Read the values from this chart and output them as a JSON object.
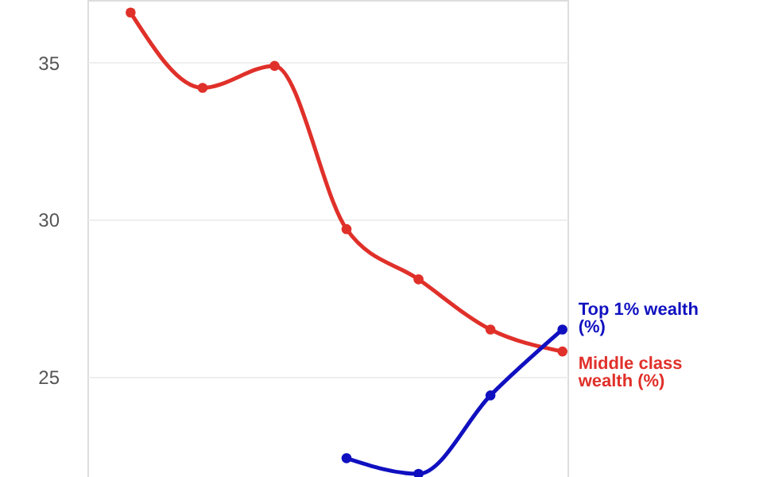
{
  "chart_data": {
    "type": "line",
    "categories": [
      null,
      null,
      null,
      null,
      null,
      null,
      null
    ],
    "series": [
      {
        "name": "Middle class wealth (%)",
        "color": "#e0302a",
        "values": [
          36.6,
          34.2,
          34.9,
          29.7,
          28.1,
          26.5,
          25.8
        ]
      },
      {
        "name": "Top 1% wealth (%)",
        "color": "#1010c0",
        "values": [
          null,
          null,
          null,
          22.4,
          21.9,
          24.4,
          26.5
        ]
      }
    ],
    "ylim": [
      21.8,
      37
    ],
    "yticks": [
      25,
      30,
      35
    ],
    "grid": "y",
    "marker": "circle",
    "tick_labels": "y"
  }
}
